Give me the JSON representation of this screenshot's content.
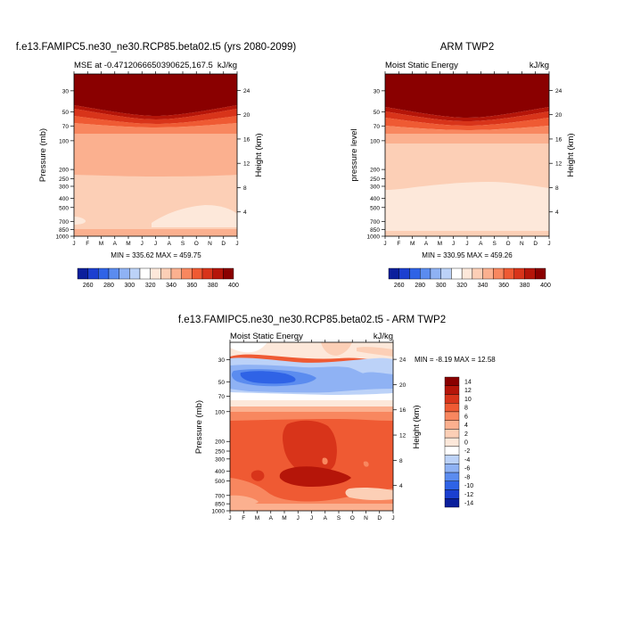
{
  "colorbar_palette": [
    "#0b1f9c",
    "#1b3fd0",
    "#2f63e6",
    "#5b8cef",
    "#8fb2f4",
    "#bcd2f8",
    "#ffffff",
    "#fde8da",
    "#fccfb6",
    "#fbb08f",
    "#f8875f",
    "#ef5a33",
    "#d8341a",
    "#b51509",
    "#8a0000"
  ],
  "chart_data": [
    {
      "id": "model",
      "type": "heatmap",
      "title": "f.e13.FAMIPC5.ne30_ne30.RCP85.beta02.t5 (yrs 2080-2099)",
      "left_string": "MSE at -0.4712066650390625,167.5",
      "right_string": "kJ/kg",
      "ylabel": "Pressure (mb)",
      "ylabel_right": "Height (km)",
      "minmax_label": "MIN = 335.62 MAX = 459.75",
      "x_ticks": [
        "J",
        "F",
        "M",
        "A",
        "M",
        "J",
        "J",
        "A",
        "S",
        "O",
        "N",
        "D",
        "J"
      ],
      "y_ticks": [
        30,
        50,
        70,
        100,
        200,
        250,
        300,
        400,
        500,
        700,
        850,
        1000
      ],
      "y_ticks_right": [
        24,
        20,
        16,
        12,
        8,
        4
      ],
      "ylim": [
        1000,
        20
      ],
      "colorbar_ticks": [
        260,
        280,
        300,
        320,
        340,
        360,
        380,
        400
      ],
      "levels_profile": [
        {
          "p": 20,
          "v": 420
        },
        {
          "p": 45,
          "v": 395
        },
        {
          "p": 55,
          "v": 385
        },
        {
          "p": 62,
          "v": 375
        },
        {
          "p": 70,
          "v": 368
        },
        {
          "p": 80,
          "v": 360
        },
        {
          "p": 95,
          "v": 352
        },
        {
          "p": 150,
          "v": 345
        },
        {
          "p": 300,
          "v": 340
        },
        {
          "p": 700,
          "v": 337
        },
        {
          "p": 900,
          "v": 340
        },
        {
          "p": 1000,
          "v": 345
        }
      ]
    },
    {
      "id": "obs",
      "type": "heatmap",
      "title": "ARM TWP2",
      "left_string": "Moist Static Energy",
      "right_string": "kJ/kg",
      "ylabel": "pressure level",
      "ylabel_right": "Height (km)",
      "minmax_label": "MIN = 330.95 MAX = 459.26",
      "x_ticks": [
        "J",
        "F",
        "M",
        "A",
        "M",
        "J",
        "J",
        "A",
        "S",
        "O",
        "N",
        "D",
        "J"
      ],
      "y_ticks": [
        30,
        50,
        70,
        100,
        200,
        250,
        300,
        400,
        500,
        700,
        850,
        1000
      ],
      "y_ticks_right": [
        24,
        20,
        16,
        12,
        8,
        4
      ],
      "ylim": [
        1000,
        20
      ],
      "colorbar_ticks": [
        260,
        280,
        300,
        320,
        340,
        360,
        380,
        400
      ]
    },
    {
      "id": "diff",
      "type": "heatmap",
      "title": "f.e13.FAMIPC5.ne30_ne30.RCP85.beta02.t5 - ARM TWP2",
      "left_string": "Moist Static Energy",
      "right_string": "kJ/kg",
      "ylabel": "Pressure (mb)",
      "ylabel_right": "Height (km)",
      "minmax_label": "MIN = -8.19 MAX = 12.58",
      "x_ticks": [
        "J",
        "F",
        "M",
        "A",
        "M",
        "J",
        "J",
        "A",
        "S",
        "O",
        "N",
        "D",
        "J"
      ],
      "y_ticks": [
        30,
        50,
        70,
        100,
        200,
        250,
        300,
        400,
        500,
        700,
        850,
        1000
      ],
      "y_ticks_right": [
        24,
        20,
        16,
        12,
        8,
        4
      ],
      "ylim": [
        1000,
        20
      ],
      "colorbar_ticks": [
        14,
        12,
        10,
        8,
        6,
        4,
        2,
        0,
        -2,
        -4,
        -6,
        -8,
        -10,
        -12,
        -14
      ]
    }
  ]
}
